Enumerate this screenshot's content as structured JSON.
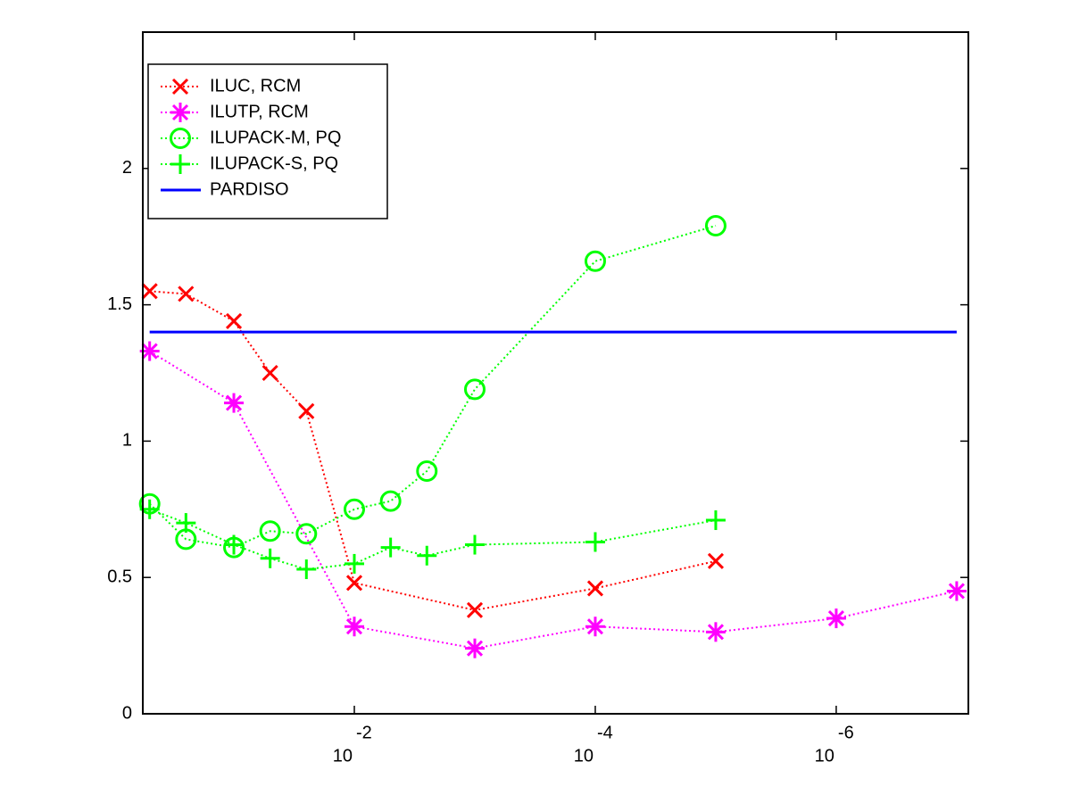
{
  "chart_data": {
    "type": "line",
    "xscale": "log",
    "xlim": [
      0.57,
      8e-08
    ],
    "ylim": [
      0,
      2.5
    ],
    "xticks": [
      {
        "value": 0.01,
        "label": "10",
        "exponent": "-2"
      },
      {
        "value": 0.0001,
        "label": "10",
        "exponent": "-4"
      },
      {
        "value": 1e-06,
        "label": "10",
        "exponent": "-6"
      }
    ],
    "yticks": [
      0,
      0.5,
      1,
      1.5,
      2
    ],
    "legend": "upper left",
    "series": [
      {
        "name": "ILUC, RCM",
        "color": "#ff0000",
        "marker": "x",
        "linestyle": "dotted",
        "x": [
          0.5,
          0.25,
          0.1,
          0.05,
          0.025,
          0.01,
          0.001,
          0.0001,
          1e-05
        ],
        "values": [
          1.55,
          1.54,
          1.44,
          1.25,
          1.11,
          0.48,
          0.38,
          0.46,
          0.56
        ]
      },
      {
        "name": "ILUTP, RCM",
        "color": "#ff00ff",
        "marker": "*",
        "linestyle": "dotted",
        "x": [
          0.5,
          0.1,
          0.01,
          0.001,
          0.0001,
          1e-05,
          1e-06,
          1e-07
        ],
        "values": [
          1.33,
          1.14,
          0.32,
          0.24,
          0.32,
          0.3,
          0.35,
          0.45
        ]
      },
      {
        "name": "ILUPACK-M, PQ",
        "color": "#00ff00",
        "marker": "o",
        "linestyle": "dotted",
        "x": [
          0.5,
          0.25,
          0.1,
          0.05,
          0.025,
          0.01,
          0.005,
          0.0025,
          0.001,
          0.0001,
          1e-05
        ],
        "values": [
          0.77,
          0.64,
          0.61,
          0.67,
          0.66,
          0.75,
          0.78,
          0.89,
          1.19,
          1.66,
          1.79
        ]
      },
      {
        "name": "ILUPACK-S, PQ",
        "color": "#00ff00",
        "marker": "+",
        "linestyle": "dotted",
        "x": [
          0.5,
          0.25,
          0.1,
          0.05,
          0.025,
          0.01,
          0.005,
          0.0025,
          0.001,
          0.0001,
          1e-05
        ],
        "values": [
          0.75,
          0.7,
          0.62,
          0.57,
          0.53,
          0.55,
          0.61,
          0.58,
          0.62,
          0.63,
          0.71
        ]
      },
      {
        "name": "PARDISO",
        "color": "#0000ff",
        "marker": "none",
        "linestyle": "solid",
        "x": [
          0.5,
          1e-07
        ],
        "values": [
          1.4,
          1.4
        ]
      }
    ]
  }
}
